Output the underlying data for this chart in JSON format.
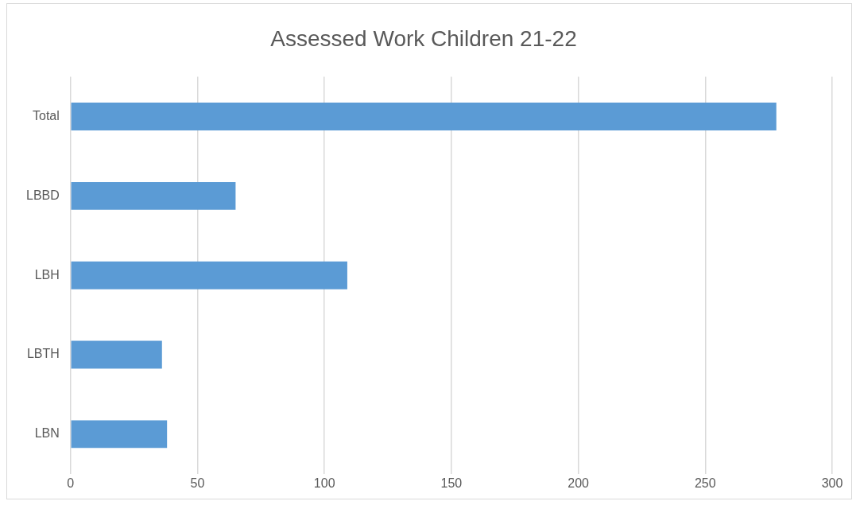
{
  "chart_data": {
    "type": "bar",
    "orientation": "horizontal",
    "title": "Assessed Work Children 21-22",
    "categories": [
      "Total",
      "LBBD",
      "LBH",
      "LBTH",
      "LBN"
    ],
    "values": [
      278,
      65,
      109,
      36,
      38
    ],
    "color": "#5b9bd5",
    "xlim": [
      0,
      300
    ],
    "xticks": [
      0,
      50,
      100,
      150,
      200,
      250,
      300
    ],
    "grid": "x",
    "legend": false
  }
}
